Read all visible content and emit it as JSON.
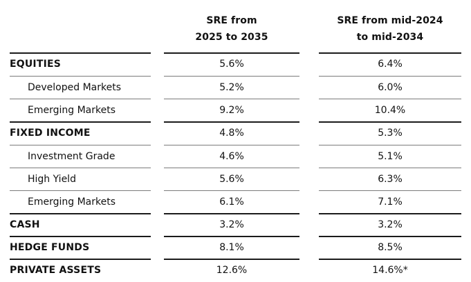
{
  "headers": {
    "col1_line1": "SRE from",
    "col1_line2": "2025 to 2035",
    "col2_line1": "SRE from mid-2024",
    "col2_line2": "to mid-2034"
  },
  "rows": [
    {
      "label": "EQUITIES",
      "sre_2025_2035": "5.6%",
      "sre_mid2024_mid2034": "6.4%",
      "category": true
    },
    {
      "label": "Developed Markets",
      "sre_2025_2035": "5.2%",
      "sre_mid2024_mid2034": "6.0%",
      "category": false
    },
    {
      "label": "Emerging Markets",
      "sre_2025_2035": "9.2%",
      "sre_mid2024_mid2034": "10.4%",
      "category": false
    },
    {
      "label": "FIXED INCOME",
      "sre_2025_2035": "4.8%",
      "sre_mid2024_mid2034": "5.3%",
      "category": true
    },
    {
      "label": "Investment Grade",
      "sre_2025_2035": "4.6%",
      "sre_mid2024_mid2034": "5.1%",
      "category": false
    },
    {
      "label": "High Yield",
      "sre_2025_2035": "5.6%",
      "sre_mid2024_mid2034": "6.3%",
      "category": false
    },
    {
      "label": "Emerging Markets",
      "sre_2025_2035": "6.1%",
      "sre_mid2024_mid2034": "7.1%",
      "category": false
    },
    {
      "label": "CASH",
      "sre_2025_2035": "3.2%",
      "sre_mid2024_mid2034": "3.2%",
      "category": true
    },
    {
      "label": "HEDGE FUNDS",
      "sre_2025_2035": "8.1%",
      "sre_mid2024_mid2034": "8.5%",
      "category": true
    },
    {
      "label": "PRIVATE ASSETS",
      "sre_2025_2035": "12.6%",
      "sre_mid2024_mid2034": "14.6%*",
      "category": true
    }
  ]
}
